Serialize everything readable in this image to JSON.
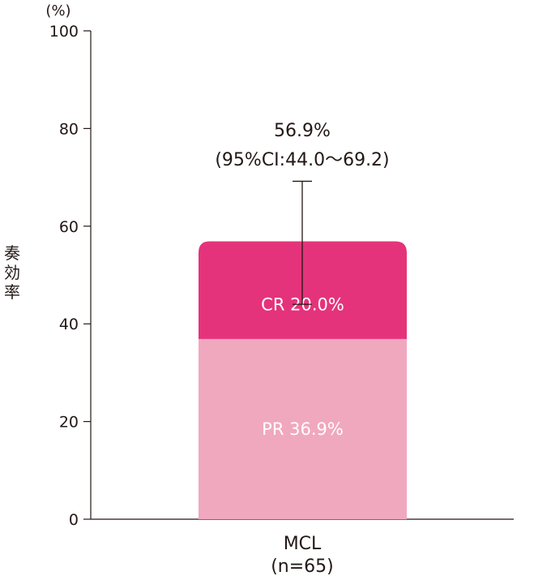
{
  "chart_data": {
    "type": "bar",
    "stacked": true,
    "unit_label": "(%)",
    "ylabel": "奏効率",
    "ylim": [
      0,
      100
    ],
    "yticks": [
      0,
      20,
      40,
      60,
      80,
      100
    ],
    "categories": [
      "MCL"
    ],
    "category_sublabels": [
      "(n=65)"
    ],
    "series": [
      {
        "name": "PR",
        "values": [
          36.9
        ],
        "label": "PR 36.9%",
        "color": "#f0a8bf"
      },
      {
        "name": "CR",
        "values": [
          20.0
        ],
        "label": "CR 20.0%",
        "color": "#e5337b"
      }
    ],
    "total": {
      "value": 56.9,
      "label": "56.9%",
      "ci_label": "(95%CI:44.0〜69.2)",
      "ci": [
        44.0,
        69.2
      ]
    },
    "grid": false
  }
}
